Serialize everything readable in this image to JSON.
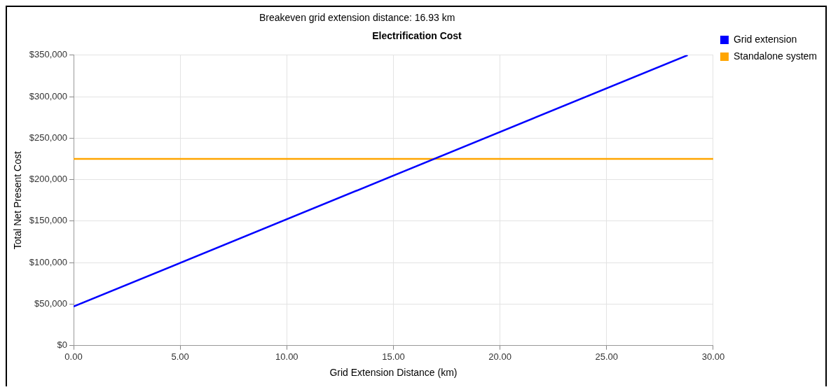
{
  "chart_data": {
    "type": "line",
    "title": "Electrification Cost",
    "annotations": [
      "Breakeven grid extension distance: 16.93 km"
    ],
    "xlabel": "Grid Extension Distance (km)",
    "ylabel": "Total Net Present Cost",
    "series": [
      {
        "name": "Grid extension",
        "color": "#0000ff",
        "x": [
          0,
          28.8
        ],
        "values": [
          47000,
          350000
        ]
      },
      {
        "name": "Standalone system",
        "color": "#ffa500",
        "x": [
          0,
          30
        ],
        "values": [
          225000,
          225000
        ]
      }
    ],
    "xlim": [
      0,
      30
    ],
    "xticks": [
      {
        "value": 0,
        "label": "0.00"
      },
      {
        "value": 5,
        "label": "5.00"
      },
      {
        "value": 10,
        "label": "10.00"
      },
      {
        "value": 15,
        "label": "15.00"
      },
      {
        "value": 20,
        "label": "20.00"
      },
      {
        "value": 25,
        "label": "25.00"
      },
      {
        "value": 30,
        "label": "30.00"
      }
    ],
    "ylim": [
      0,
      350000
    ],
    "yticks": [
      {
        "value": 0,
        "label": "$0"
      },
      {
        "value": 50000,
        "label": "$50,000"
      },
      {
        "value": 100000,
        "label": "$100,000"
      },
      {
        "value": 150000,
        "label": "$150,000"
      },
      {
        "value": 200000,
        "label": "$200,000"
      },
      {
        "value": 250000,
        "label": "$250,000"
      },
      {
        "value": 300000,
        "label": "$300,000"
      },
      {
        "value": 350000,
        "label": "$350,000"
      }
    ],
    "grid": true,
    "legend": "top right",
    "marker": "none",
    "line_style": "solid"
  }
}
